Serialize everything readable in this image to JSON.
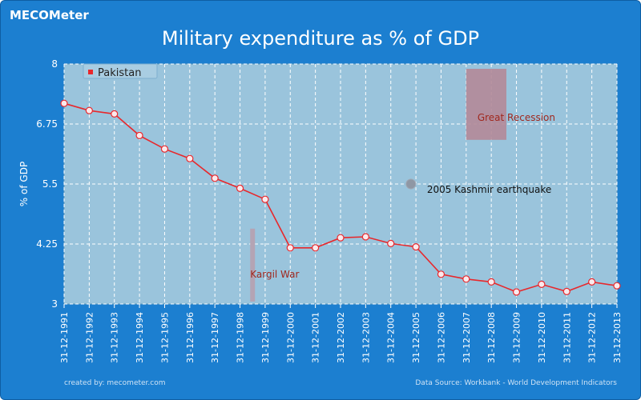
{
  "brand": {
    "logo_text": "MECOMeter"
  },
  "footer": {
    "created_by": "created by: mecometer.com",
    "source": "Data Source: Workbank - World Development Indicators"
  },
  "colors": {
    "frame": "#1c7fd0",
    "plot_bg": "#9ac4dc",
    "series": "#e8282c",
    "text_light": "#ffffff"
  },
  "chart_data": {
    "type": "line",
    "title": "Military expenditure as % of GDP",
    "ylabel": "% of GDP",
    "xlabel": "",
    "ylim": [
      3,
      8
    ],
    "yticks": [
      "3",
      "4.25",
      "5.5",
      "6.75",
      "8"
    ],
    "grid": true,
    "legend_position": "top-left",
    "categories": [
      "31-12-1991",
      "31-12-1992",
      "31-12-1993",
      "31-12-1994",
      "31-12-1995",
      "31-12-1996",
      "31-12-1997",
      "31-12-1998",
      "31-12-1999",
      "31-12-2000",
      "31-12-2001",
      "31-12-2002",
      "31-12-2003",
      "31-12-2004",
      "31-12-2005",
      "31-12-2006",
      "31-12-2007",
      "31-12-2008",
      "31-12-2009",
      "31-12-2010",
      "31-12-2011",
      "31-12-2012",
      "31-12-2013"
    ],
    "series": [
      {
        "name": "Pakistan",
        "values": [
          7.18,
          7.03,
          6.96,
          6.51,
          6.23,
          6.03,
          5.62,
          5.41,
          5.18,
          4.17,
          4.17,
          4.38,
          4.4,
          4.26,
          4.19,
          3.62,
          3.52,
          3.46,
          3.25,
          3.41,
          3.26,
          3.46,
          3.38
        ]
      }
    ],
    "annotations": [
      {
        "label": "Kargil War",
        "type": "bar",
        "x_index": 7.5,
        "y_from": 3.05,
        "y_to": 4.57,
        "color": "#b4a4b4"
      },
      {
        "label": "Great Recession",
        "type": "band",
        "x_from": 16,
        "x_to": 17.6,
        "y_from": 6.42,
        "y_to": 7.9,
        "color": "#b48a98"
      },
      {
        "label": "2005 Kashmir earthquake",
        "type": "point",
        "x_index": 13.8,
        "y": 5.5,
        "color": "#8f97a4"
      }
    ]
  }
}
